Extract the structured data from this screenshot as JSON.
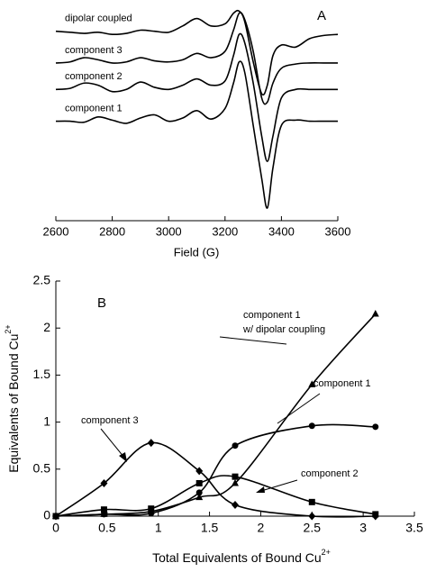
{
  "chart_data": [
    {
      "type": "line",
      "panel": "A",
      "xlabel": "Field (G)",
      "x": [
        2600,
        2650,
        2700,
        2750,
        2800,
        2850,
        2900,
        2950,
        3000,
        3050,
        3100,
        3150,
        3200,
        3230,
        3250,
        3270,
        3300,
        3330,
        3350,
        3370,
        3400,
        3450,
        3500,
        3550,
        3600
      ],
      "xlim": [
        2600,
        3600
      ],
      "xticks": [
        2600,
        2800,
        3000,
        3200,
        3400,
        3600
      ],
      "ylim": [
        0,
        10
      ],
      "series": [
        {
          "name": "dipolar coupled",
          "color": "#000000",
          "values": [
            8.95,
            8.9,
            8.85,
            8.9,
            8.8,
            8.85,
            9.0,
            8.95,
            8.9,
            9.2,
            9.55,
            9.2,
            9.3,
            9.8,
            9.9,
            9.4,
            7.5,
            6.0,
            6.4,
            7.8,
            8.3,
            8.2,
            8.6,
            8.75,
            8.8
          ]
        },
        {
          "name": "component 3",
          "color": "#000000",
          "values": [
            7.45,
            7.5,
            7.7,
            7.6,
            7.45,
            7.5,
            7.7,
            7.55,
            7.5,
            7.6,
            7.9,
            7.7,
            8.0,
            9.0,
            9.8,
            9.5,
            8.0,
            5.8,
            5.6,
            6.5,
            7.2,
            7.4,
            7.45,
            7.45,
            7.45
          ]
        },
        {
          "name": "component 2",
          "color": "#000000",
          "values": [
            6.2,
            6.25,
            6.5,
            6.4,
            6.1,
            6.2,
            6.55,
            6.3,
            6.2,
            6.4,
            6.7,
            6.4,
            6.6,
            7.8,
            8.8,
            8.4,
            6.5,
            4.0,
            2.8,
            4.0,
            5.8,
            6.2,
            6.2,
            6.2,
            6.2
          ]
        },
        {
          "name": "component 1",
          "color": "#000000",
          "values": [
            4.7,
            4.7,
            4.65,
            4.9,
            4.75,
            4.6,
            4.85,
            5.0,
            4.7,
            4.85,
            5.2,
            4.8,
            5.3,
            6.5,
            7.5,
            7.0,
            4.5,
            2.0,
            0.6,
            2.5,
            4.5,
            4.75,
            4.7,
            4.7,
            4.7
          ]
        }
      ]
    },
    {
      "type": "line",
      "panel": "B",
      "xlabel": {
        "text": "Total Equivalents of Bound Cu",
        "sup": "2+"
      },
      "ylabel": {
        "text": "Equivalents of Bound Cu",
        "sup": "2+"
      },
      "x": [
        0,
        0.47,
        0.93,
        1.4,
        1.75,
        2.5,
        3.12
      ],
      "xlim": [
        0,
        3.5
      ],
      "xticks": [
        0,
        0.5,
        1,
        1.5,
        2,
        2.5,
        3,
        3.5
      ],
      "ylim": [
        0,
        2.5
      ],
      "yticks": [
        0,
        0.5,
        1,
        1.5,
        2,
        2.5
      ],
      "series": [
        {
          "name": "component 1 w/ dipolar coupling",
          "marker": "triangle",
          "color": "#000000",
          "values": [
            0,
            0.02,
            0.05,
            0.2,
            0.35,
            1.4,
            2.15
          ]
        },
        {
          "name": "component 1",
          "marker": "circle",
          "color": "#000000",
          "values": [
            0,
            0.02,
            0.03,
            0.25,
            0.75,
            0.96,
            0.95
          ]
        },
        {
          "name": "component 2",
          "marker": "square",
          "color": "#000000",
          "values": [
            0,
            0.07,
            0.08,
            0.35,
            0.42,
            0.15,
            0.02
          ]
        },
        {
          "name": "component 3",
          "marker": "diamond",
          "color": "#000000",
          "values": [
            0,
            0.35,
            0.78,
            0.48,
            0.12,
            0,
            0
          ]
        }
      ]
    }
  ]
}
